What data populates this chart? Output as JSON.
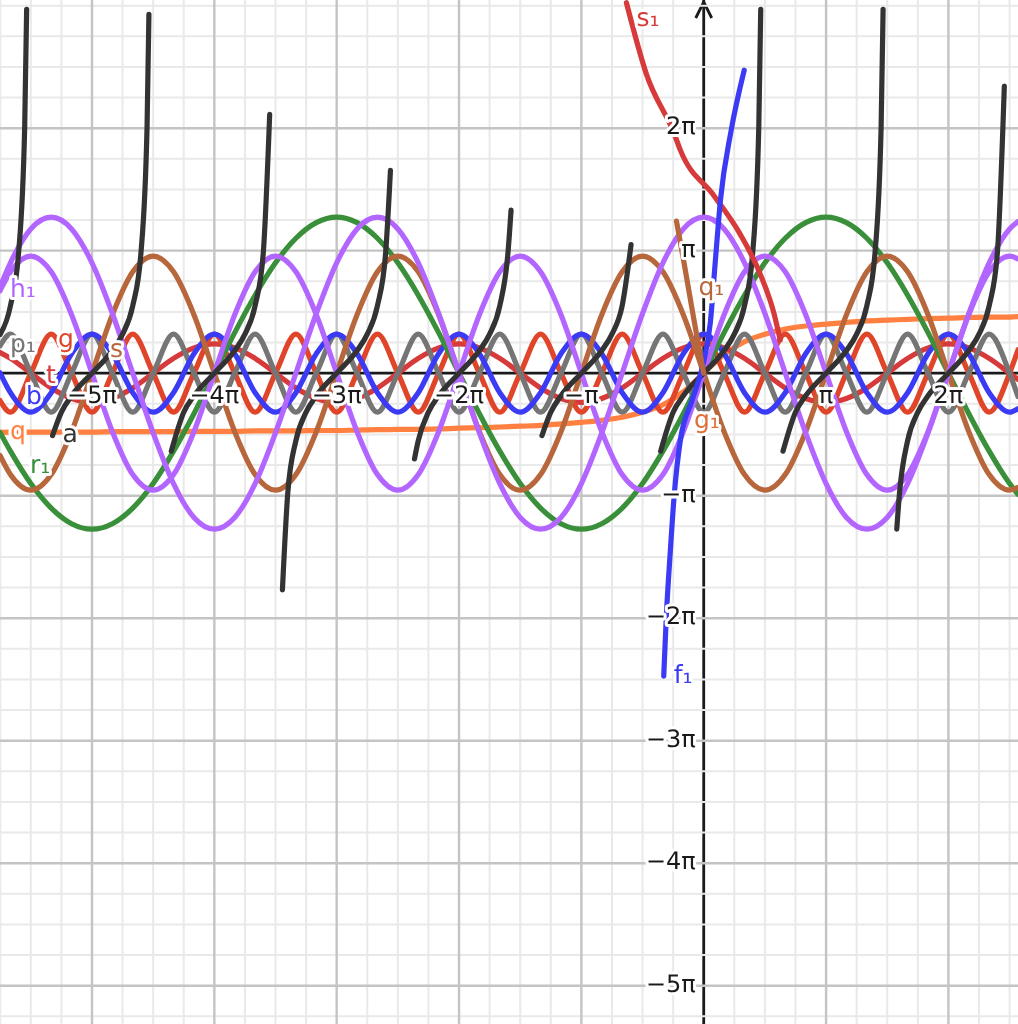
{
  "chart_data": {
    "type": "line",
    "xlim": [
      -18.07,
      8.07
    ],
    "ylim": [
      -16.69,
      9.57
    ],
    "grid": true,
    "marker": "none",
    "line_style": "solid",
    "xticks": [
      {
        "value": -18.064,
        "label": null
      },
      {
        "value": -17.279,
        "label": null
      },
      {
        "value": -16.493,
        "label": null
      },
      {
        "value": -15.708,
        "label": "−5π"
      },
      {
        "value": -14.923,
        "label": null
      },
      {
        "value": -14.137,
        "label": null
      },
      {
        "value": -13.352,
        "label": null
      },
      {
        "value": -12.566,
        "label": "−4π"
      },
      {
        "value": -11.781,
        "label": null
      },
      {
        "value": -10.996,
        "label": null
      },
      {
        "value": -10.21,
        "label": null
      },
      {
        "value": -9.425,
        "label": "−3π"
      },
      {
        "value": -8.639,
        "label": null
      },
      {
        "value": -7.854,
        "label": null
      },
      {
        "value": -7.069,
        "label": null
      },
      {
        "value": -6.283,
        "label": "−2π"
      },
      {
        "value": -5.498,
        "label": null
      },
      {
        "value": -4.712,
        "label": null
      },
      {
        "value": -3.927,
        "label": null
      },
      {
        "value": -3.142,
        "label": "−π"
      },
      {
        "value": -2.356,
        "label": null
      },
      {
        "value": -1.571,
        "label": null
      },
      {
        "value": -0.785,
        "label": null
      },
      {
        "value": 0.785,
        "label": null
      },
      {
        "value": 1.571,
        "label": null
      },
      {
        "value": 2.356,
        "label": null
      },
      {
        "value": 3.142,
        "label": "π"
      },
      {
        "value": 3.927,
        "label": null
      },
      {
        "value": 4.712,
        "label": null
      },
      {
        "value": 5.498,
        "label": null
      },
      {
        "value": 6.283,
        "label": "2π"
      },
      {
        "value": 7.069,
        "label": null
      },
      {
        "value": 7.854,
        "label": null
      }
    ],
    "yticks": [
      {
        "value": -16.493,
        "label": null
      },
      {
        "value": -15.708,
        "label": "−5π"
      },
      {
        "value": -14.923,
        "label": null
      },
      {
        "value": -14.137,
        "label": null
      },
      {
        "value": -13.352,
        "label": null
      },
      {
        "value": -12.566,
        "label": "−4π"
      },
      {
        "value": -11.781,
        "label": null
      },
      {
        "value": -10.996,
        "label": null
      },
      {
        "value": -10.21,
        "label": null
      },
      {
        "value": -9.425,
        "label": "−3π"
      },
      {
        "value": -8.639,
        "label": null
      },
      {
        "value": -7.854,
        "label": null
      },
      {
        "value": -7.069,
        "label": null
      },
      {
        "value": -6.283,
        "label": "−2π"
      },
      {
        "value": -5.498,
        "label": null
      },
      {
        "value": -4.712,
        "label": null
      },
      {
        "value": -3.927,
        "label": null
      },
      {
        "value": -3.142,
        "label": "−π"
      },
      {
        "value": -2.356,
        "label": null
      },
      {
        "value": -1.571,
        "label": null
      },
      {
        "value": -0.785,
        "label": null
      },
      {
        "value": 0.785,
        "label": null
      },
      {
        "value": 1.571,
        "label": null
      },
      {
        "value": 2.356,
        "label": null
      },
      {
        "value": 3.142,
        "label": "π"
      },
      {
        "value": 3.927,
        "label": null
      },
      {
        "value": 4.712,
        "label": null
      },
      {
        "value": 5.498,
        "label": null
      },
      {
        "value": 6.283,
        "label": "2π"
      },
      {
        "value": 7.069,
        "label": null
      },
      {
        "value": 7.854,
        "label": null
      },
      {
        "value": 8.639,
        "label": null
      },
      {
        "value": 9.425,
        "label": null
      }
    ],
    "x": [
      -18.07,
      -17.802,
      -17.279,
      -16.755,
      -16.232,
      -15.708,
      -15.184,
      -14.661,
      -14.137,
      -13.614,
      -13.09,
      -12.566,
      -12.043,
      -11.519,
      -10.996,
      -10.472,
      -9.948,
      -9.425,
      -8.901,
      -8.378,
      -7.854,
      -7.33,
      -6.807,
      -6.283,
      -5.76,
      -5.236,
      -4.712,
      -4.189,
      -3.665,
      -3.142,
      -2.618,
      -2.094,
      -1.571,
      -1.047,
      -0.524,
      0,
      0.524,
      1.047,
      1.571,
      2.094,
      2.618,
      3.142,
      3.665,
      4.189,
      4.712,
      5.236,
      5.76,
      6.283,
      6.807,
      7.33,
      7.854,
      8.07
    ],
    "series": [
      {
        "name": "q",
        "color": "#ff8040",
        "values": [
          -1.52,
          -1.51,
          -1.51,
          -1.51,
          -1.51,
          -1.51,
          -1.5,
          -1.5,
          -1.5,
          -1.5,
          -1.49,
          -1.49,
          -1.49,
          -1.48,
          -1.48,
          -1.48,
          -1.47,
          -1.47,
          -1.46,
          -1.45,
          -1.44,
          -1.44,
          -1.43,
          -1.41,
          -1.4,
          -1.38,
          -1.36,
          -1.34,
          -1.3,
          -1.26,
          -1.21,
          -1.13,
          -1,
          -0.81,
          -0.48,
          0,
          0.48,
          0.81,
          1,
          1.13,
          1.21,
          1.26,
          1.3,
          1.34,
          1.36,
          1.38,
          1.4,
          1.41,
          1.43,
          1.44,
          1.44,
          1.45
        ]
      },
      {
        "name": "t",
        "color": "#d63a3a",
        "values": [
          0.53,
          0.38,
          0,
          -0.38,
          -0.65,
          -0.75,
          -0.65,
          -0.38,
          0,
          0.38,
          0.65,
          0.75,
          0.65,
          0.38,
          0,
          -0.38,
          -0.65,
          -0.75,
          -0.65,
          -0.38,
          0,
          0.38,
          0.65,
          0.75,
          0.65,
          0.38,
          0,
          -0.38,
          -0.65,
          -0.75,
          -0.65,
          -0.38,
          0,
          0.38,
          0.65,
          0.75,
          0.65,
          0.38,
          0,
          -0.38,
          -0.65,
          -0.75,
          -0.65,
          -0.38,
          0,
          0.38,
          0.65,
          0.75,
          0.65,
          0.38,
          0,
          -0.16
        ]
      },
      {
        "name": "g",
        "color": "#e0452a",
        "values": [
          -0.7,
          -1,
          0,
          1,
          0,
          -1,
          0,
          1,
          0,
          -1,
          0,
          1,
          0,
          -1,
          0,
          1,
          0,
          -1,
          0,
          1,
          0,
          -1,
          0,
          1,
          0,
          -1,
          0,
          1,
          0,
          -1,
          0,
          1,
          0,
          -1,
          0,
          1,
          0,
          -1,
          0,
          1,
          0,
          -1,
          0,
          1,
          0,
          -1,
          0,
          1,
          0,
          -1,
          0,
          0.6
        ]
      },
      {
        "name": "p₁",
        "color": "#757575",
        "values": [
          0.7,
          1,
          0,
          -1,
          0,
          1,
          0,
          -1,
          0,
          1,
          0,
          -1,
          0,
          1,
          0,
          -1,
          0,
          1,
          0,
          -1,
          0,
          1,
          0,
          -1,
          0,
          1,
          0,
          -1,
          0,
          1,
          0,
          -1,
          0,
          1,
          0,
          -1,
          0,
          1,
          0,
          -1,
          0,
          1,
          0,
          -1,
          0,
          1,
          0,
          -1,
          0,
          1,
          0,
          -0.6
        ]
      },
      {
        "name": "b",
        "color": "#3b3bf5",
        "values": [
          0.01,
          -0.5,
          -1,
          -0.5,
          0.5,
          1,
          0.5,
          -0.5,
          -1,
          -0.5,
          0.5,
          1,
          0.5,
          -0.5,
          -1,
          -0.5,
          0.5,
          1,
          0.5,
          -0.5,
          -1,
          -0.5,
          0.5,
          1,
          0.5,
          -0.5,
          -1,
          -0.5,
          0.5,
          1,
          0.5,
          -0.5,
          -1,
          -0.5,
          0.5,
          1,
          0.5,
          -0.5,
          -1,
          -0.5,
          0.5,
          1,
          0.5,
          -0.5,
          -1,
          -0.5,
          0.5,
          1,
          0.5,
          -0.5,
          -1,
          -0.91
        ]
      },
      {
        "name": "r₁",
        "color": "#3a8f3a",
        "values": [
          -1.52,
          -2,
          -2.83,
          -3.46,
          -3.86,
          -4,
          -3.86,
          -3.46,
          -2.83,
          -2,
          -1.04,
          0,
          1.04,
          2,
          2.83,
          3.46,
          3.86,
          4,
          3.86,
          3.46,
          2.83,
          2,
          1.04,
          0,
          -1.04,
          -2,
          -2.83,
          -3.46,
          -3.86,
          -4,
          -3.86,
          -3.46,
          -2.83,
          -2,
          -1.04,
          0,
          1.04,
          2,
          2.83,
          3.46,
          3.86,
          4,
          3.86,
          3.46,
          2.83,
          2,
          1.04,
          0,
          -1.04,
          -2,
          -2.83,
          -3.11
        ]
      },
      {
        "name": "s",
        "color": "#b8673d",
        "values": [
          -2.11,
          -2.6,
          -3,
          -2.6,
          -1.5,
          0,
          1.5,
          2.6,
          3,
          2.6,
          1.5,
          0,
          -1.5,
          -2.6,
          -3,
          -2.6,
          -1.5,
          0,
          1.5,
          2.6,
          3,
          2.6,
          1.5,
          0,
          -1.5,
          -2.6,
          -3,
          -2.6,
          -1.5,
          0,
          1.5,
          2.6,
          3,
          2.6,
          1.5,
          0,
          -1.5,
          -2.6,
          -3,
          -2.6,
          -1.5,
          0,
          1.5,
          2.6,
          3,
          2.6,
          1.5,
          0,
          -1.5,
          -2.6,
          -3,
          -2.93
        ]
      },
      {
        "name": "h₁",
        "color": "#b366ff",
        "values": [
          2.11,
          2.6,
          3,
          2.6,
          1.5,
          0,
          -1.5,
          -2.6,
          -3,
          -2.6,
          -1.5,
          0,
          1.5,
          2.6,
          3,
          2.6,
          1.5,
          0,
          -1.5,
          -2.6,
          -3,
          -2.6,
          -1.5,
          0,
          1.5,
          2.6,
          3,
          2.6,
          1.5,
          0,
          -1.5,
          -2.6,
          -3,
          -2.6,
          -1.5,
          0,
          1.5,
          2.6,
          3,
          2.6,
          1.5,
          0,
          -1.5,
          -2.6,
          -3,
          -2.6,
          -1.5,
          0,
          1.5,
          2.6,
          3,
          2.93
        ]
      },
      {
        "color": "#b366ff",
        "values": [
          2.21,
          2.83,
          3.7,
          4,
          3.7,
          2.83,
          1.53,
          0,
          -1.53,
          -2.83,
          -3.7,
          -4,
          -3.7,
          -2.83,
          -1.53,
          0,
          1.53,
          2.83,
          3.7,
          4,
          3.7,
          2.83,
          1.53,
          0,
          -1.53,
          -2.83,
          -3.7,
          -4,
          -3.7,
          -2.83,
          -1.53,
          0,
          1.53,
          2.83,
          3.7,
          4,
          3.7,
          2.83,
          1.53,
          0,
          -1.53,
          -2.83,
          -3.7,
          -4,
          -3.7,
          -2.83,
          -1.53,
          0,
          1.53,
          2.83,
          3.7,
          3.89
        ]
      },
      {
        "color": "#333333",
        "x": [
          -18.07,
          -17.802,
          -17.593,
          -17.436,
          -17.386
        ],
        "values": [
          0.99,
          1.73,
          3.08,
          6.31,
          9.33
        ]
      },
      {
        "name": "a",
        "color": "#333333",
        "x": [
          -16.72,
          -16.493,
          -16.232,
          -15.708,
          -15.184,
          -14.923,
          -14.661,
          -14.451,
          -14.294,
          -14.246,
          -14.137,
          -13.672,
          -13.352,
          -13.09,
          -12.566,
          -12.043,
          -11.781,
          -11.519,
          -11.31,
          -11.145,
          -10.996,
          -10.818,
          -10.681,
          -10.472,
          -10.21,
          -9.948,
          -9.425,
          -8.901,
          -8.639,
          -8.378,
          -8.168,
          -8.044,
          -7.854,
          -7.427,
          -7.33,
          -7.069,
          -6.807,
          -6.283,
          -5.76,
          -5.498,
          -5.236,
          -5.027,
          -4.947,
          -4.712,
          -4.153,
          -3.927,
          -3.665,
          -3.142,
          -2.618,
          -2.356,
          -2.094,
          -1.865,
          -1.571,
          -1.106,
          -0.785,
          -0.524,
          0,
          0.524,
          0.785,
          1.047,
          1.257,
          1.414,
          1.464,
          1.571,
          2.036,
          2.356,
          2.618,
          3.142,
          3.665,
          3.927,
          4.189,
          4.398,
          4.555,
          4.606,
          4.712,
          4.957,
          5.027,
          5.236,
          5.498,
          5.76,
          6.283,
          6.807,
          7.069,
          7.33,
          7.54,
          7.719
        ],
        "values": [
          -1.6,
          -1,
          -0.58,
          0,
          0.58,
          1,
          1.73,
          3.08,
          6.31,
          9.2,
          null,
          -2,
          -1,
          -0.58,
          0,
          0.58,
          1,
          1.73,
          3.08,
          6.64,
          null,
          -5.56,
          -3.08,
          -1.73,
          -1,
          -0.58,
          0,
          0.58,
          1,
          1.73,
          3.08,
          5.2,
          null,
          -2.2,
          -1.73,
          -1,
          -0.58,
          0,
          0.58,
          1,
          1.73,
          3.08,
          4.18,
          null,
          -1.6,
          -1,
          -0.58,
          0,
          0.58,
          1,
          1.73,
          3.3,
          null,
          -2,
          -1,
          -0.58,
          0,
          0.58,
          1,
          1.73,
          3.08,
          6.31,
          9.33,
          null,
          -2,
          -1,
          -0.58,
          0,
          0.58,
          1,
          1.73,
          3.08,
          6.31,
          9.33,
          null,
          -4,
          -3.08,
          -1.73,
          -1,
          -0.58,
          0,
          0.58,
          1,
          1.73,
          3.08,
          7.36
        ]
      },
      {
        "name": "s₁",
        "color": "#d63a3a",
        "x": [
          -1.985,
          -1.472,
          -0.754,
          -0.6,
          0.272,
          0.938,
          1.451,
          1.81,
          1.964
        ],
        "values": [
          9.5,
          7.67,
          6.13,
          5.72,
          4.54,
          3.56,
          2.54,
          1.51,
          0.85
        ]
      },
      {
        "name": "f₁",
        "color": "#3b3bf5",
        "x": [
          -1.027,
          -0.96,
          -0.86,
          -0.755,
          -0.6,
          -0.3,
          0,
          0.17,
          0.3,
          0.43,
          0.7,
          1.04
        ],
        "values": [
          -7.77,
          -6.23,
          -4.6,
          -3.1,
          -1.72,
          -0.7,
          0.3,
          1.3,
          2.9,
          4.44,
          6.2,
          7.77
        ]
      },
      {
        "name": "q₁",
        "color": "#b8673d",
        "x": [
          -0.7,
          -0.5,
          -0.3,
          -0.15,
          0
        ],
        "values": [
          3.9,
          2.8,
          1.65,
          0.8,
          0
        ]
      }
    ],
    "annotations": [
      {
        "text": "g₁",
        "x": -0.25,
        "y": -0.85
      }
    ]
  }
}
